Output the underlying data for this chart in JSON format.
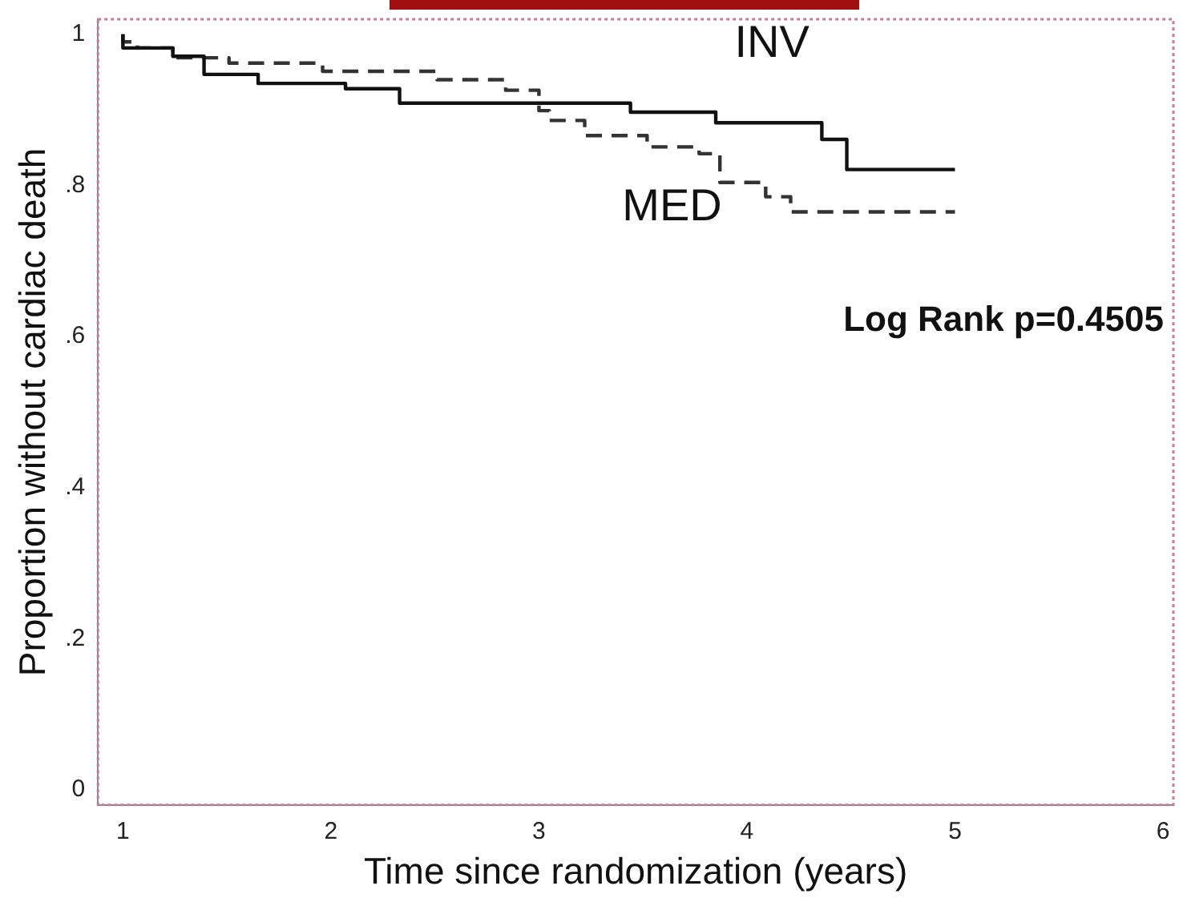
{
  "chart_data": {
    "type": "step",
    "xlabel": "Time since randomization (years)",
    "ylabel": "Proportion without cardiac death",
    "xlim": [
      0.88,
      6.05
    ],
    "ylim": [
      -0.02,
      1.02
    ],
    "xticks": [
      1,
      2,
      3,
      4,
      5,
      6
    ],
    "yticks": [
      0,
      {
        "value": 0.2,
        "label": ".2"
      },
      {
        "value": 0.4,
        "label": ".4"
      },
      {
        "value": 0.6,
        "label": ".6"
      },
      {
        "value": 0.8,
        "label": ".8"
      },
      1
    ],
    "grid": false,
    "legend": false,
    "marker": "none",
    "annotations": [
      "Log Rank p=0.4505"
    ],
    "series": [
      {
        "name": "INV",
        "color": "#111111",
        "line_style": "solid",
        "x": [
          1,
          1.24,
          1.39,
          1.65,
          2.07,
          2.33,
          3.44,
          3.85,
          4.36,
          4.48,
          4.68,
          5.0
        ],
        "values": [
          1,
          0.982,
          0.971,
          0.947,
          0.935,
          0.928,
          0.909,
          0.897,
          0.883,
          0.861,
          0.821,
          0.821
        ]
      },
      {
        "name": "MED",
        "color": "#333333",
        "line_style": "dashed",
        "x": [
          1,
          1.07,
          1.24,
          1.51,
          1.96,
          2.51,
          2.84,
          3.0,
          3.05,
          3.22,
          3.52,
          3.77,
          3.87,
          4.09,
          4.21,
          4.9,
          5.0
        ],
        "values": [
          1,
          0.99,
          0.982,
          0.969,
          0.962,
          0.951,
          0.94,
          0.926,
          0.899,
          0.886,
          0.866,
          0.851,
          0.842,
          0.804,
          0.785,
          0.765,
          0.765
        ]
      }
    ]
  }
}
